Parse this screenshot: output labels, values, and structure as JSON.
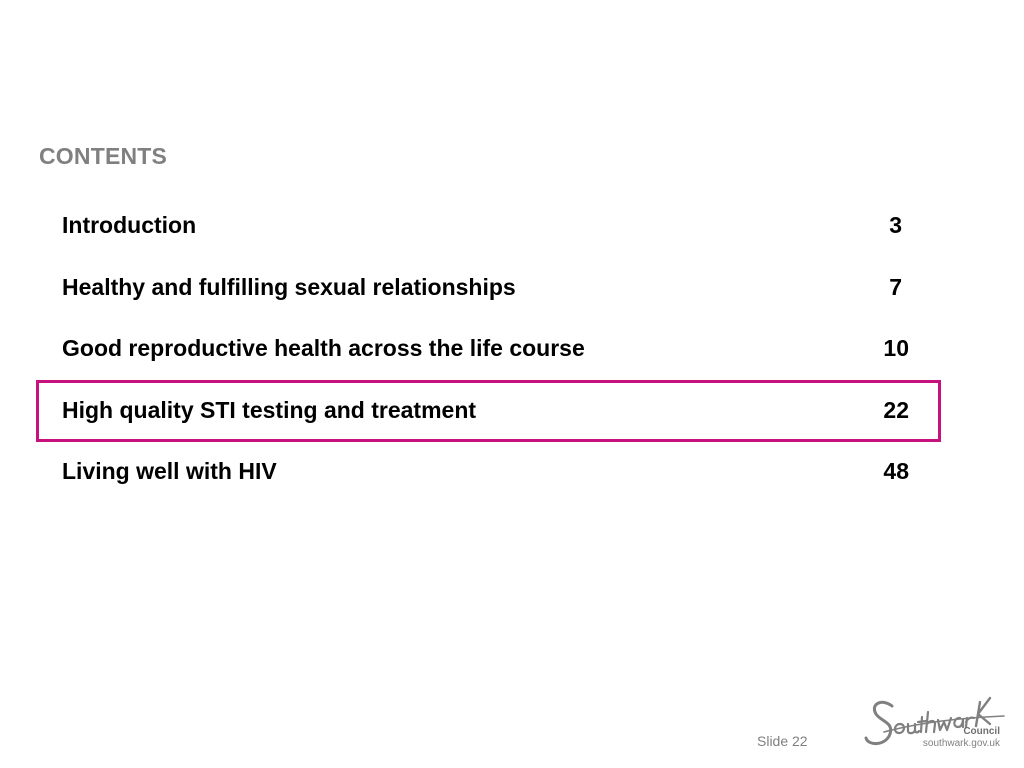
{
  "heading": "CONTENTS",
  "toc": [
    {
      "title": "Introduction",
      "page": "3"
    },
    {
      "title": "Healthy and fulfilling sexual relationships",
      "page": "7"
    },
    {
      "title": "Good reproductive health across the life course",
      "page": "10"
    },
    {
      "title": "High quality STI testing and treatment",
      "page": "22"
    },
    {
      "title": "Living well with HIV",
      "page": "48"
    }
  ],
  "highlighted_index": 3,
  "colors": {
    "heading": "#808080",
    "highlight_border": "#c7117e",
    "text": "#000000"
  },
  "footer": {
    "slide_label": "Slide 22"
  },
  "logo": {
    "wordmark": "Southwark",
    "council": "Council",
    "url": "southwark.gov.uk"
  }
}
